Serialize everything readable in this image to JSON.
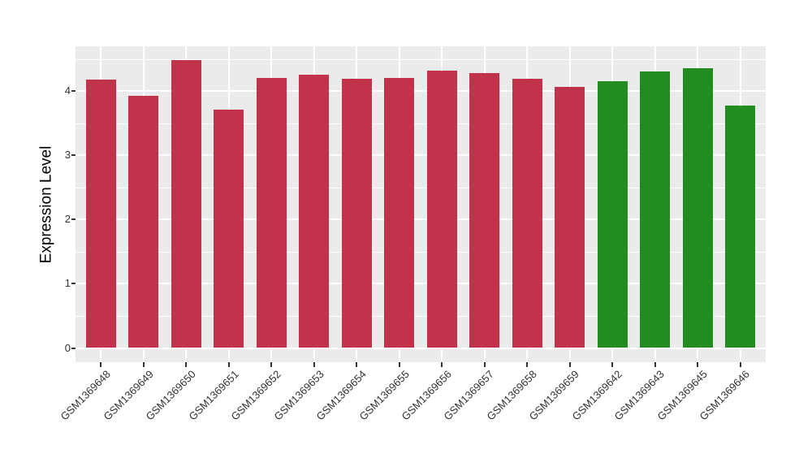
{
  "figure": {
    "background": "#FFFFFF",
    "panel_background": "#EBEBEB",
    "grid_color": "#FFFFFF",
    "axis_text_color": "#333333",
    "axis_title_color": "#000000",
    "tick_color": "#333333"
  },
  "chart_data": {
    "type": "bar",
    "title": "",
    "xlabel": "",
    "ylabel": "Expression Level",
    "categories": [
      "GSM1369648",
      "GSM1369649",
      "GSM1369650",
      "GSM1369651",
      "GSM1369652",
      "GSM1369653",
      "GSM1369654",
      "GSM1369655",
      "GSM1369656",
      "GSM1369657",
      "GSM1369658",
      "GSM1369659",
      "GSM1369642",
      "GSM1369643",
      "GSM1369645",
      "GSM1369646"
    ],
    "values": [
      4.18,
      3.93,
      4.48,
      3.71,
      4.2,
      4.25,
      4.19,
      4.2,
      4.32,
      4.28,
      4.19,
      4.06,
      4.15,
      4.3,
      4.36,
      3.77
    ],
    "bar_colors": [
      "#C2324A",
      "#C2324A",
      "#C2324A",
      "#C2324A",
      "#C2324A",
      "#C2324A",
      "#C2324A",
      "#C2324A",
      "#C2324A",
      "#C2324A",
      "#C2324A",
      "#C2324A",
      "#228B22",
      "#228B22",
      "#228B22",
      "#228B22"
    ],
    "palette": {
      "group1": "#C2324A",
      "group2": "#228B22"
    },
    "y_ticks": [
      0,
      1,
      2,
      3,
      4
    ],
    "y_minor_ticks": [
      0.5,
      1.5,
      2.5,
      3.5,
      4.5
    ],
    "ylim": [
      -0.23,
      4.69
    ],
    "x_label_angle": -45,
    "grid": true,
    "legend_position": "none"
  }
}
